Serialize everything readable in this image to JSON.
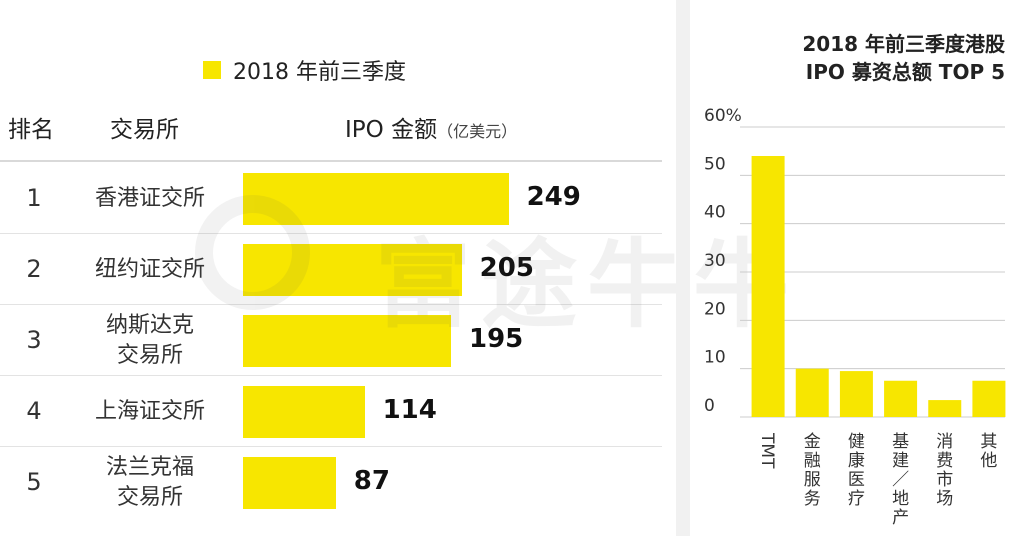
{
  "chart_data": [
    {
      "type": "bar",
      "orientation": "horizontal",
      "legend": "2018 年前三季度",
      "legend_placement": "top",
      "columns": {
        "rank": "排名",
        "exchange": "交易所",
        "amount": "IPO 金额",
        "amount_unit": "（亿美元）"
      },
      "rows": [
        {
          "rank": "1",
          "exchange": [
            "香港证交所"
          ],
          "value": 249
        },
        {
          "rank": "2",
          "exchange": [
            "纽约证交所"
          ],
          "value": 205
        },
        {
          "rank": "3",
          "exchange": [
            "纳斯达克",
            "交易所"
          ],
          "value": 195
        },
        {
          "rank": "4",
          "exchange": [
            "上海证交所"
          ],
          "value": 114
        },
        {
          "rank": "5",
          "exchange": [
            "法兰克福",
            "交易所"
          ],
          "value": 87
        }
      ],
      "xlim": [
        0,
        300
      ],
      "color": "#f7e600"
    },
    {
      "type": "bar",
      "title": [
        "2018 年前三季度港股",
        "IPO 募资总额 TOP 5"
      ],
      "categories": [
        "TMT",
        "金融服务",
        "健康医疗",
        "基建／地产",
        "消费市场",
        "其他"
      ],
      "values": [
        54,
        10,
        9.5,
        7.5,
        3.5,
        7.5
      ],
      "ylim": [
        0,
        60
      ],
      "y_ticks": [
        "0",
        "10",
        "20",
        "30",
        "40",
        "50",
        "60%"
      ],
      "grid": true,
      "color": "#f7e600"
    }
  ],
  "watermark": "富途牛牛"
}
